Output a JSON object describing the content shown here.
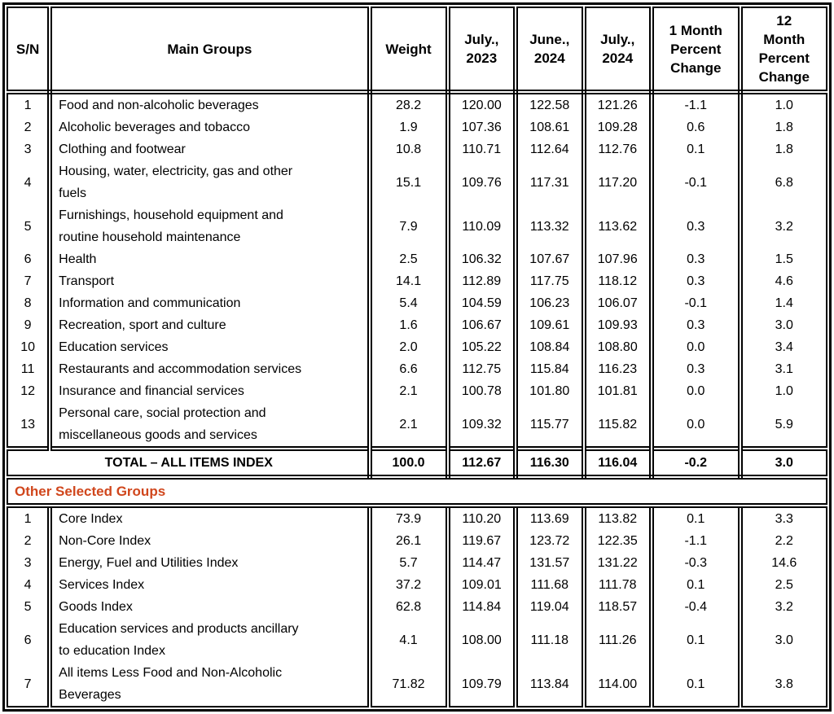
{
  "colors": {
    "section_label_text": "#D0461C",
    "border": "#000000",
    "body_text": "#000000",
    "background": "#FFFFFF"
  },
  "table": {
    "header": [
      "S/N",
      "Main Groups",
      "Weight",
      "July.,\n2023",
      "June.,\n2024",
      "July.,\n2024",
      "1 Month\nPercent\nChange",
      "12\nMonth\nPercent\nChange"
    ],
    "main_rows": [
      {
        "sn": "1",
        "group": "Food and non-alcoholic beverages",
        "weight": "28.2",
        "jul23": "120.00",
        "jun24": "122.58",
        "jul24": "121.26",
        "m1": "-1.1",
        "m12": "1.0"
      },
      {
        "sn": "2",
        "group": "Alcoholic beverages and tobacco",
        "weight": "1.9",
        "jul23": "107.36",
        "jun24": "108.61",
        "jul24": "109.28",
        "m1": "0.6",
        "m12": "1.8"
      },
      {
        "sn": "3",
        "group": "Clothing and footwear",
        "weight": "10.8",
        "jul23": "110.71",
        "jun24": "112.64",
        "jul24": "112.76",
        "m1": "0.1",
        "m12": "1.8"
      },
      {
        "sn": "4",
        "group": "Housing, water, electricity, gas and other\nfuels",
        "weight": "15.1",
        "jul23": "109.76",
        "jun24": "117.31",
        "jul24": "117.20",
        "m1": "-0.1",
        "m12": "6.8"
      },
      {
        "sn": "5",
        "group": "Furnishings, household equipment and\nroutine household maintenance",
        "weight": "7.9",
        "jul23": "110.09",
        "jun24": "113.32",
        "jul24": "113.62",
        "m1": "0.3",
        "m12": "3.2"
      },
      {
        "sn": "6",
        "group": "Health",
        "weight": "2.5",
        "jul23": "106.32",
        "jun24": "107.67",
        "jul24": "107.96",
        "m1": "0.3",
        "m12": "1.5"
      },
      {
        "sn": "7",
        "group": "Transport",
        "weight": "14.1",
        "jul23": "112.89",
        "jun24": "117.75",
        "jul24": "118.12",
        "m1": "0.3",
        "m12": "4.6"
      },
      {
        "sn": "8",
        "group": "Information and communication",
        "weight": "5.4",
        "jul23": "104.59",
        "jun24": "106.23",
        "jul24": "106.07",
        "m1": "-0.1",
        "m12": "1.4"
      },
      {
        "sn": "9",
        "group": "Recreation, sport and culture",
        "weight": "1.6",
        "jul23": "106.67",
        "jun24": "109.61",
        "jul24": "109.93",
        "m1": "0.3",
        "m12": "3.0"
      },
      {
        "sn": "10",
        "group": "Education services",
        "weight": "2.0",
        "jul23": "105.22",
        "jun24": "108.84",
        "jul24": "108.80",
        "m1": "0.0",
        "m12": "3.4"
      },
      {
        "sn": "11",
        "group": "Restaurants and accommodation services",
        "weight": "6.6",
        "jul23": "112.75",
        "jun24": "115.84",
        "jul24": "116.23",
        "m1": "0.3",
        "m12": "3.1"
      },
      {
        "sn": "12",
        "group": "Insurance and financial services",
        "weight": "2.1",
        "jul23": "100.78",
        "jun24": "101.80",
        "jul24": "101.81",
        "m1": "0.0",
        "m12": "1.0"
      },
      {
        "sn": "13",
        "group": "Personal care, social protection and\nmiscellaneous goods and services",
        "weight": "2.1",
        "jul23": "109.32",
        "jun24": "115.77",
        "jul24": "115.82",
        "m1": "0.0",
        "m12": "5.9"
      }
    ],
    "total_row": {
      "label": "TOTAL – ALL ITEMS INDEX",
      "weight": "100.0",
      "jul23": "112.67",
      "jun24": "116.30",
      "jul24": "116.04",
      "m1": "-0.2",
      "m12": "3.0"
    },
    "section_label": "Other Selected Groups",
    "other_rows": [
      {
        "sn": "1",
        "group": "Core Index",
        "weight": "73.9",
        "jul23": "110.20",
        "jun24": "113.69",
        "jul24": "113.82",
        "m1": "0.1",
        "m12": "3.3"
      },
      {
        "sn": "2",
        "group": "Non-Core Index",
        "weight": "26.1",
        "jul23": "119.67",
        "jun24": "123.72",
        "jul24": "122.35",
        "m1": "-1.1",
        "m12": "2.2"
      },
      {
        "sn": "3",
        "group": "Energy, Fuel and Utilities Index",
        "weight": "5.7",
        "jul23": "114.47",
        "jun24": "131.57",
        "jul24": "131.22",
        "m1": "-0.3",
        "m12": "14.6"
      },
      {
        "sn": "4",
        "group": "Services Index",
        "weight": "37.2",
        "jul23": "109.01",
        "jun24": "111.68",
        "jul24": "111.78",
        "m1": "0.1",
        "m12": "2.5"
      },
      {
        "sn": "5",
        "group": "Goods Index",
        "weight": "62.8",
        "jul23": "114.84",
        "jun24": "119.04",
        "jul24": "118.57",
        "m1": "-0.4",
        "m12": "3.2"
      },
      {
        "sn": "6",
        "group": "Education services and products ancillary\nto education Index",
        "weight": "4.1",
        "jul23": "108.00",
        "jun24": "111.18",
        "jul24": "111.26",
        "m1": "0.1",
        "m12": "3.0"
      },
      {
        "sn": "7",
        "group": "All items Less Food and Non-Alcoholic\nBeverages",
        "weight": "71.82",
        "jul23": "109.79",
        "jun24": "113.84",
        "jul24": "114.00",
        "m1": "0.1",
        "m12": "3.8"
      }
    ]
  }
}
